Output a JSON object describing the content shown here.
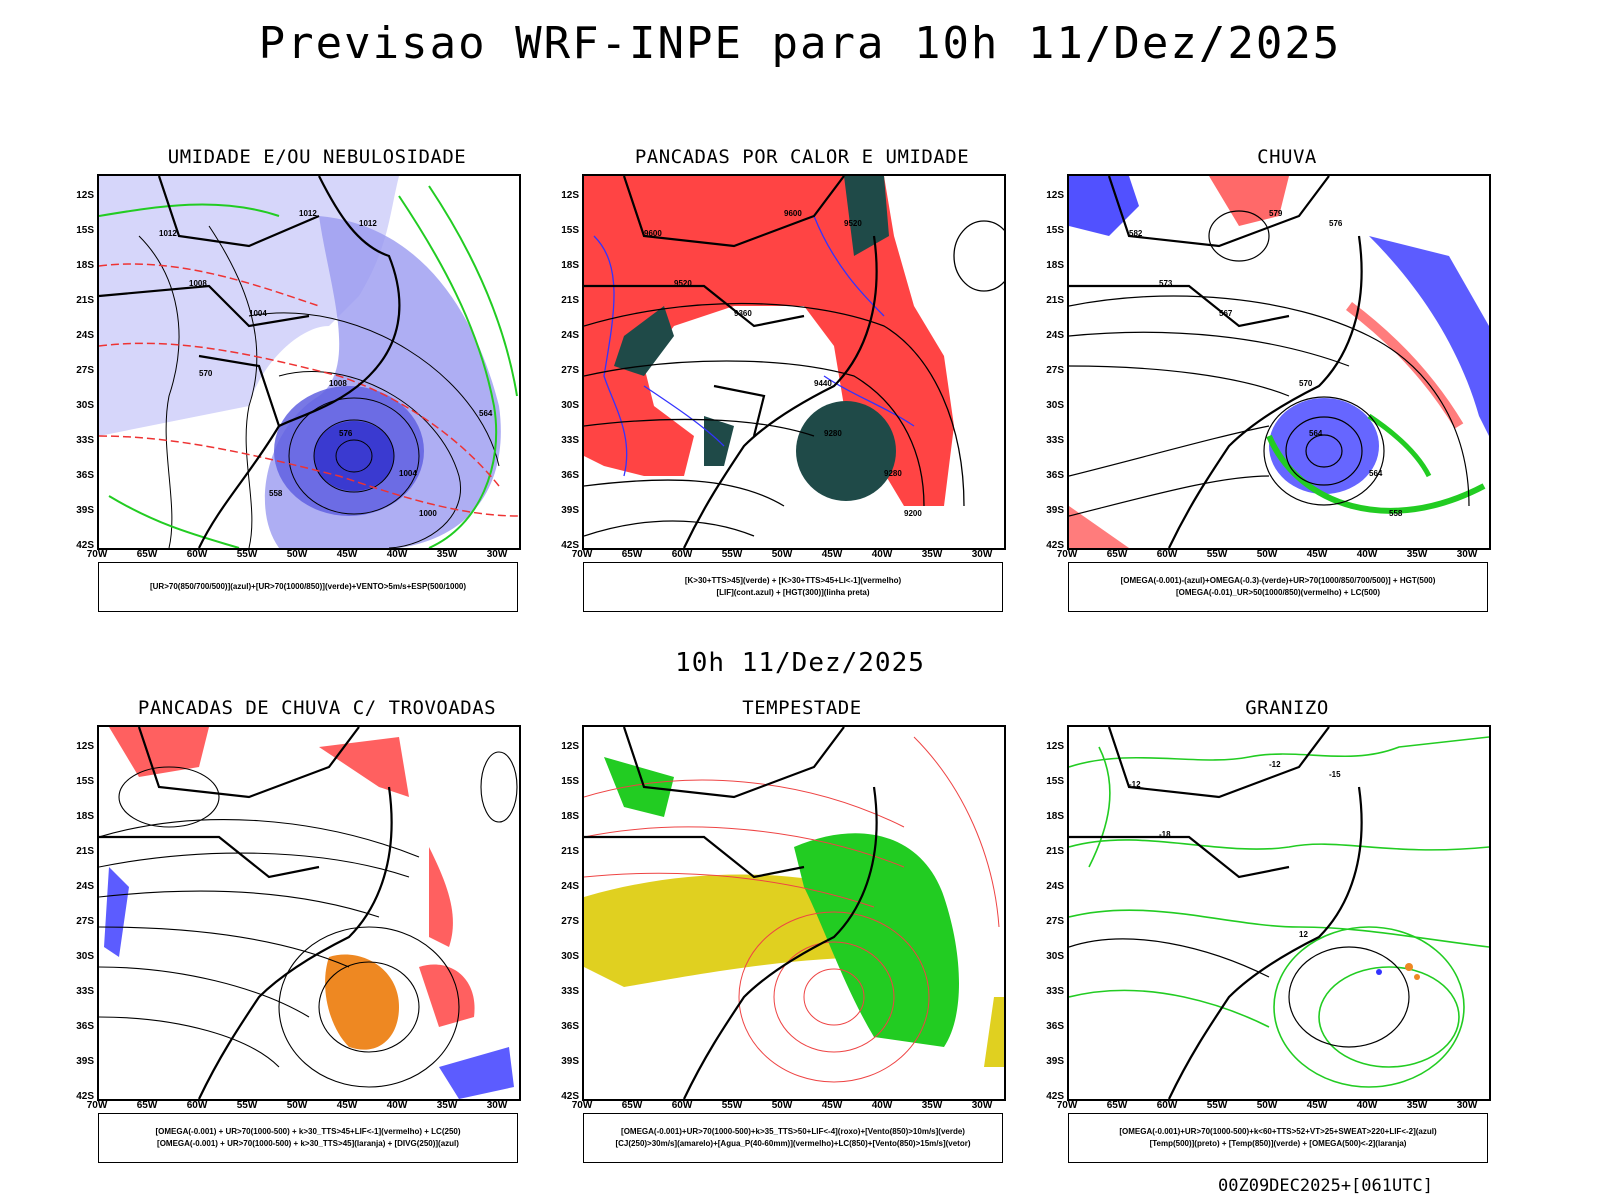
{
  "header": {
    "title": "Previsao WRF-INPE  para 10h 11/Dez/2025"
  },
  "subheader": {
    "title": "10h 11/Dez/2025"
  },
  "footer": {
    "run_stamp": "00Z09DEC2025+[061UTC]"
  },
  "axes": {
    "lat_labels": [
      "12S",
      "15S",
      "18S",
      "21S",
      "24S",
      "27S",
      "30S",
      "33S",
      "36S",
      "39S",
      "42S"
    ],
    "lon_labels": [
      "70W",
      "65W",
      "60W",
      "55W",
      "50W",
      "45W",
      "40W",
      "35W",
      "30W"
    ]
  },
  "colors": {
    "blue": "#3333ff",
    "green": "#22cc22",
    "red": "#ff4444",
    "orange": "#ee8822",
    "yellow": "#e0d020",
    "darkteal": "#1f4a48",
    "lavender": "#9a9af0"
  },
  "panels": [
    {
      "title": "UMIDADE E/OU NEBULOSIDADE",
      "legend": [
        "[UR>70(850/700/500)](azul)+[UR>70(1000/850)](verde)+VENTO>5m/s+ESP(500/1000)"
      ],
      "contour_labels": [
        "1012",
        "1012",
        "1012",
        "1008",
        "1008",
        "1004",
        "1004",
        "1000",
        "576",
        "570",
        "564",
        "558"
      ]
    },
    {
      "title": "PANCADAS POR CALOR E UMIDADE",
      "legend": [
        "[K>30+TTS>45](verde) + [K>30+TTS>45+LI<-1](vermelho)",
        "[LIF](cont.azul) + [HGT(300)](linha preta)"
      ],
      "contour_labels": [
        "9600",
        "9600",
        "9520",
        "9520",
        "9440",
        "9360",
        "9280",
        "9200",
        "9280"
      ]
    },
    {
      "title": "CHUVA",
      "legend": [
        "[OMEGA(-0.001)-(azul)+OMEGA(-0.3)-(verde)+UR>70(1000/850/700/500)] + HGT(500)",
        "[OMEGA(-0.01)_UR>50(1000/850)(vermelho) + LC(500)"
      ],
      "contour_labels": [
        "582",
        "579",
        "576",
        "573",
        "570",
        "567",
        "564",
        "558",
        "564"
      ]
    },
    {
      "title": "PANCADAS DE CHUVA C/ TROVOADAS",
      "legend": [
        "[OMEGA(-0.001) + UR>70(1000-500) + k>30_TTS>45+LIF<-1](vermelho) + LC(250)",
        "[OMEGA(-0.001) + UR>70(1000-500) + k>30_TTS>45](laranja) + [DIVG(250)](azul)"
      ],
      "contour_labels": []
    },
    {
      "title": "TEMPESTADE",
      "legend": [
        "[OMEGA(-0.001)+UR>70(1000-500)+k>35_TTS>50+LIF<-4](roxo)+[Vento(850)>10m/s](verde)",
        "[CJ(250)>30m/s](amarelo)+[Agua_P(40-60mm)](vermelho)+LC(850)+[Vento(850)>15m/s](vetor)"
      ],
      "contour_labels": []
    },
    {
      "title": "GRANIZO",
      "legend": [
        "[OMEGA(-0.001)+UR>70(1000-500)+k<60+TTS>52+VT>25+SWEAT>220+LIF<-2](azul)",
        "[Temp(500)](preto) + [Temp(850)](verde) + [OMEGA(500)<-2](laranja)"
      ],
      "contour_labels": [
        "-12",
        "-12",
        "-15",
        "-18",
        "12"
      ]
    }
  ]
}
